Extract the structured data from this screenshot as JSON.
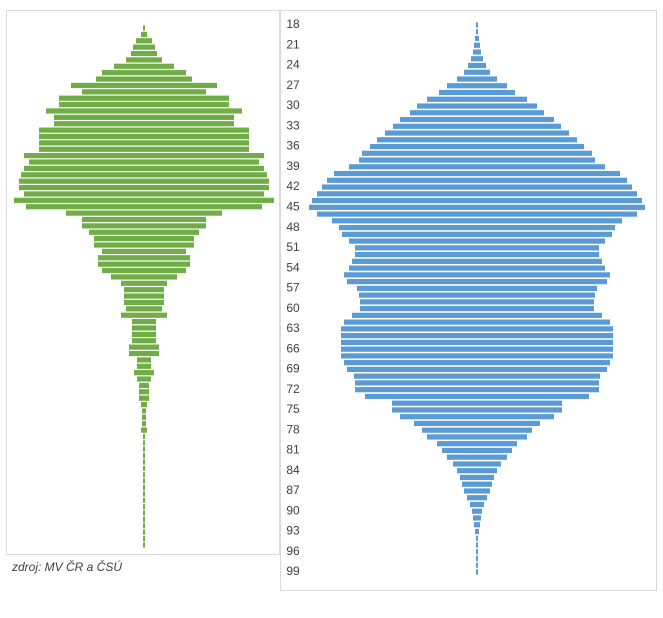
{
  "chart_data": [
    {
      "type": "bar",
      "color": "#70ad47",
      "values": [
        1,
        3,
        8,
        11,
        13,
        18,
        30,
        42,
        48,
        73,
        62,
        85,
        85,
        98,
        90,
        90,
        105,
        105,
        105,
        105,
        120,
        115,
        120,
        123,
        125,
        125,
        120,
        130,
        118,
        78,
        62,
        62,
        55,
        50,
        50,
        42,
        46,
        46,
        42,
        33,
        23,
        20,
        20,
        20,
        18,
        23,
        12,
        12,
        12,
        12,
        15,
        15,
        7,
        7,
        10,
        7,
        5,
        5,
        5,
        3,
        2,
        2,
        2,
        3,
        1,
        1,
        1,
        1,
        1,
        1,
        1,
        1,
        1,
        1,
        1,
        1,
        1,
        1,
        1,
        1,
        1,
        1
      ]
    },
    {
      "type": "bar",
      "color": "#5b9bd5",
      "categories": [
        "18",
        null,
        null,
        "21",
        null,
        null,
        "24",
        null,
        null,
        "27",
        null,
        null,
        "30",
        null,
        null,
        "33",
        null,
        null,
        "36",
        null,
        null,
        "39",
        null,
        null,
        "42",
        null,
        null,
        "45",
        null,
        null,
        "48",
        null,
        null,
        "51",
        null,
        null,
        "54",
        null,
        null,
        "57",
        null,
        null,
        "60",
        null,
        null,
        "63",
        null,
        null,
        "66",
        null,
        null,
        "69",
        null,
        null,
        "72",
        null,
        null,
        "75",
        null,
        null,
        "78",
        null,
        null,
        "81",
        null,
        null,
        "84",
        null,
        null,
        "87",
        null,
        null,
        "90",
        null,
        null,
        "93",
        null,
        null,
        "96",
        null,
        null,
        "99"
      ],
      "values": [
        1,
        1,
        2,
        3,
        4,
        6,
        9,
        13,
        20,
        30,
        38,
        50,
        60,
        67,
        77,
        84,
        92,
        100,
        107,
        115,
        118,
        128,
        143,
        150,
        155,
        160,
        165,
        168,
        160,
        145,
        138,
        135,
        128,
        122,
        122,
        125,
        128,
        133,
        130,
        120,
        118,
        117,
        117,
        125,
        133,
        136,
        136,
        136,
        136,
        136,
        133,
        130,
        123,
        122,
        122,
        112,
        85,
        85,
        77,
        63,
        55,
        50,
        40,
        35,
        30,
        24,
        20,
        17,
        15,
        13,
        10,
        7,
        5,
        4,
        3,
        2,
        1,
        1,
        1,
        1,
        1,
        1
      ]
    }
  ],
  "source": "zdroj: MV ČR a ČSÚ"
}
